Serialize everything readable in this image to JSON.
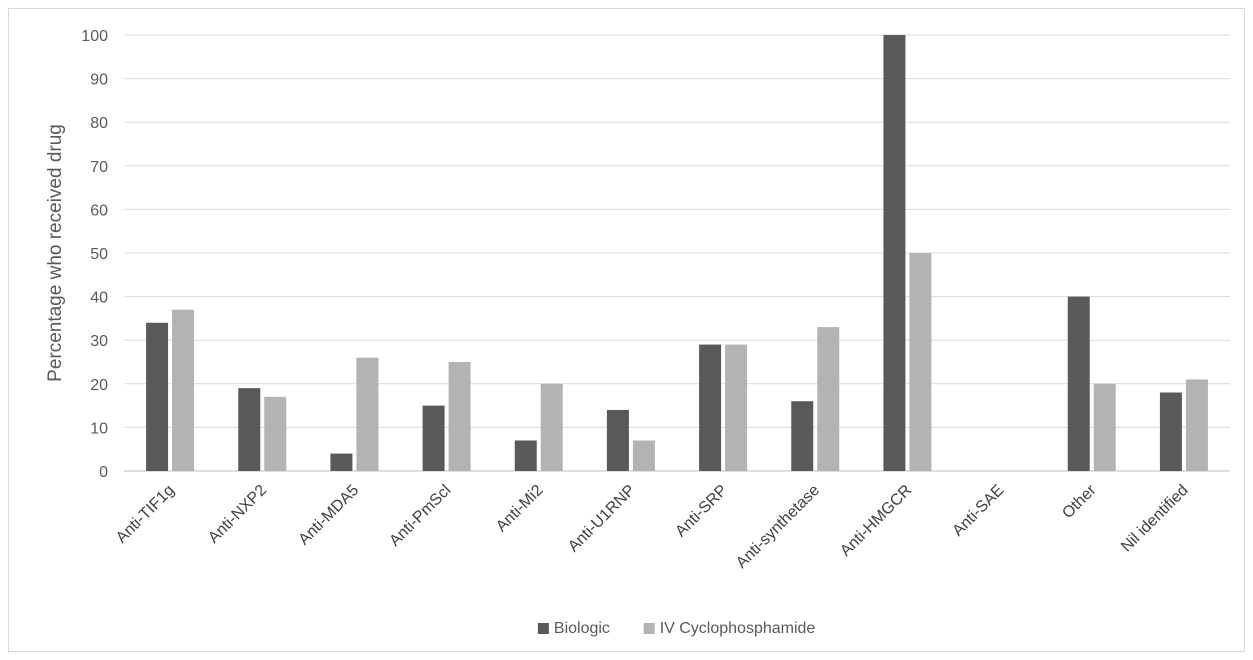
{
  "chart_data": {
    "type": "bar",
    "title": "",
    "xlabel": "",
    "ylabel": "Percentage who received drug",
    "ylim": [
      0,
      100
    ],
    "yticks": [
      0,
      10,
      20,
      30,
      40,
      50,
      60,
      70,
      80,
      90,
      100
    ],
    "grid": true,
    "legend_position": "bottom",
    "categories": [
      "Anti-TIF1g",
      "Anti-NXP2",
      "Anti-MDA5",
      "Anti-PmScl",
      "Anti-Mi2",
      "Anti-U1RNP",
      "Anti-SRP",
      "Anti-synthetase",
      "Anti-HMGCR",
      "Anti-SAE",
      "Other",
      "Nil identified"
    ],
    "series": [
      {
        "name": "Biologic",
        "color": "#595959",
        "values": [
          34,
          19,
          4,
          15,
          7,
          14,
          29,
          16,
          100,
          0,
          40,
          18
        ]
      },
      {
        "name": "IV Cyclophosphamide",
        "color": "#b3b3b3",
        "values": [
          37,
          17,
          26,
          25,
          20,
          7,
          29,
          33,
          50,
          0,
          20,
          21
        ]
      }
    ],
    "gridline_color": "#d9d9d9",
    "axis_color": "#bfbfbf"
  }
}
